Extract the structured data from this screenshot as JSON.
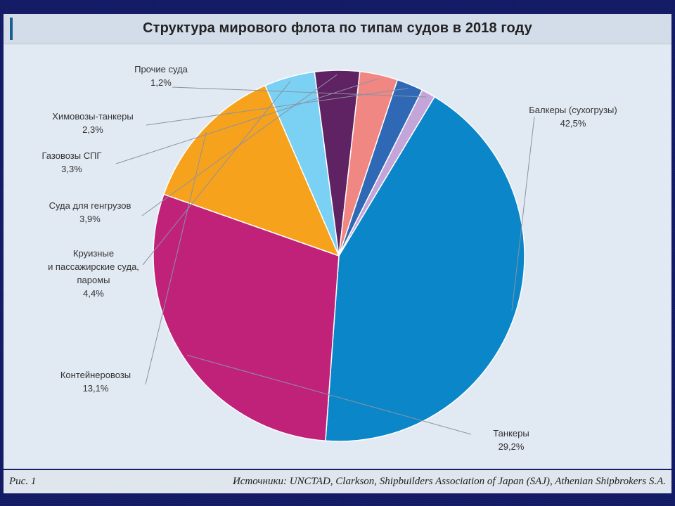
{
  "chart_data": {
    "type": "pie",
    "title": "Структура мирового флота по типам судов в 2018 году",
    "slices": [
      {
        "name": "Балкеры (сухогрузы)",
        "value": 42.5,
        "value_label": "42,5%",
        "color": "#0a86c9",
        "label_lines": [
          "Балкеры (сухогрузы)"
        ]
      },
      {
        "name": "Танкеры",
        "value": 29.2,
        "value_label": "29,2%",
        "color": "#c0227a",
        "label_lines": [
          "Танкеры"
        ]
      },
      {
        "name": "Контейнеровозы",
        "value": 13.1,
        "value_label": "13,1%",
        "color": "#f7a21c",
        "label_lines": [
          "Контейнеровозы"
        ]
      },
      {
        "name": "Круизные и пассажирские суда, паромы",
        "value": 4.4,
        "value_label": "4,4%",
        "color": "#7bd1f4",
        "label_lines": [
          "Круизные",
          "и пассажирские суда,",
          "паромы"
        ]
      },
      {
        "name": "Суда для генгрузов",
        "value": 3.9,
        "value_label": "3,9%",
        "color": "#5f2262",
        "label_lines": [
          "Суда для генгрузов"
        ]
      },
      {
        "name": "Газовозы СПГ",
        "value": 3.3,
        "value_label": "3,3%",
        "color": "#f08782",
        "label_lines": [
          "Газовозы СПГ"
        ]
      },
      {
        "name": "Химовозы-танкеры",
        "value": 2.3,
        "value_label": "2,3%",
        "color": "#2f68b4",
        "label_lines": [
          "Химовозы-танкеры"
        ]
      },
      {
        "name": "Прочие суда",
        "value": 1.2,
        "value_label": "1,2%",
        "color": "#c4a5d9",
        "label_lines": [
          "Прочие суда"
        ]
      }
    ]
  },
  "footer": {
    "figure_label": "Рис. 1",
    "sources": "Источники: UNCTAD, Clarkson, Shipbuilders Association of Japan (SAJ), Athenian Shipbrokers S.A."
  }
}
